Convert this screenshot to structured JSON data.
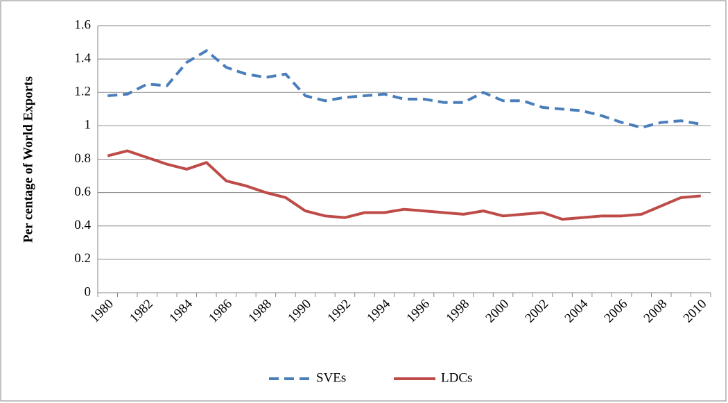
{
  "chart_data": {
    "type": "line",
    "y_label": "Per centage of World Exports",
    "categories": [
      "1980",
      null,
      "1982",
      null,
      "1984",
      null,
      "1986",
      null,
      "1988",
      null,
      "1990",
      null,
      "1992",
      null,
      "1994",
      null,
      "1996",
      null,
      "1998",
      null,
      "2000",
      null,
      "2002",
      null,
      "2004",
      null,
      "2006",
      null,
      "2008",
      null,
      "2010"
    ],
    "series": [
      {
        "name": "SVEs",
        "color": "#4a7ebb",
        "dashed": true,
        "values": [
          1.18,
          1.19,
          1.25,
          1.24,
          1.38,
          1.45,
          1.35,
          1.31,
          1.29,
          1.31,
          1.18,
          1.15,
          1.17,
          1.18,
          1.19,
          1.16,
          1.16,
          1.14,
          1.14,
          1.2,
          1.15,
          1.15,
          1.11,
          1.1,
          1.09,
          1.06,
          1.02,
          0.99,
          1.02,
          1.03,
          1.01
        ]
      },
      {
        "name": "LDCs",
        "color": "#be4b48",
        "dashed": false,
        "values": [
          0.82,
          0.85,
          0.81,
          0.77,
          0.74,
          0.78,
          0.67,
          0.64,
          0.6,
          0.57,
          0.49,
          0.46,
          0.45,
          0.48,
          0.48,
          0.5,
          0.49,
          0.48,
          0.47,
          0.49,
          0.46,
          0.47,
          0.48,
          0.44,
          0.45,
          0.46,
          0.46,
          0.47,
          0.52,
          0.57,
          0.58
        ]
      }
    ],
    "ylim": [
      0,
      1.6
    ],
    "yticks": [
      0,
      0.2,
      0.4,
      0.6,
      0.8,
      1,
      1.2,
      1.4,
      1.6
    ],
    "grid": true,
    "legend": "bottom"
  }
}
